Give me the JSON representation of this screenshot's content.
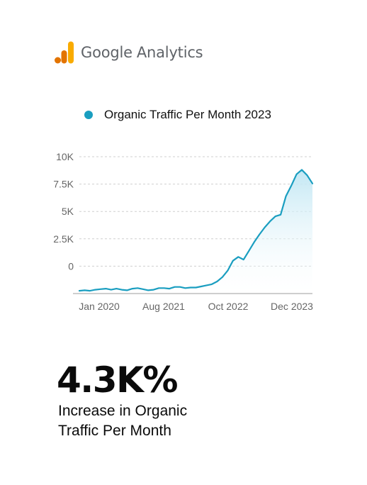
{
  "brand": {
    "name": "Google",
    "product": "Analytics",
    "logo_icon": "google-analytics-logo-icon",
    "logo_colors": [
      "#f9ab00",
      "#e37400"
    ]
  },
  "chart_data": {
    "type": "area",
    "title": "",
    "legend": [
      {
        "name": "Organic Traffic Per Month 2023",
        "color": "#1a9ec0"
      }
    ],
    "legend_position": "top",
    "xlabel": "",
    "ylabel": "",
    "x_ticks": [
      "Jan 2020",
      "Aug 2021",
      "Oct 2022",
      "Dec 2023"
    ],
    "y_ticks": [
      "10K",
      "7.5K",
      "5K",
      "2.5K",
      "0"
    ],
    "ylim": [
      -2500,
      10000
    ],
    "grid": true,
    "line_color": "#1a9ec0",
    "fill_color": "#d2eef7",
    "series": [
      {
        "name": "Organic Traffic Per Month 2023",
        "values": [
          -2250,
          -2200,
          -2250,
          -2150,
          -2100,
          -2050,
          -2150,
          -2050,
          -2150,
          -2200,
          -2050,
          -2000,
          -2100,
          -2200,
          -2150,
          -2000,
          -2000,
          -2050,
          -1900,
          -1900,
          -2000,
          -1950,
          -1950,
          -1850,
          -1750,
          -1650,
          -1400,
          -1000,
          -400,
          500,
          850,
          600,
          1400,
          2200,
          2900,
          3550,
          4100,
          4550,
          4700,
          6400,
          7350,
          8400,
          8800,
          8300,
          7550
        ]
      }
    ]
  },
  "stat": {
    "value": "4.3K%",
    "caption_line1": "Increase in Organic",
    "caption_line2": "Traffic Per Month"
  }
}
